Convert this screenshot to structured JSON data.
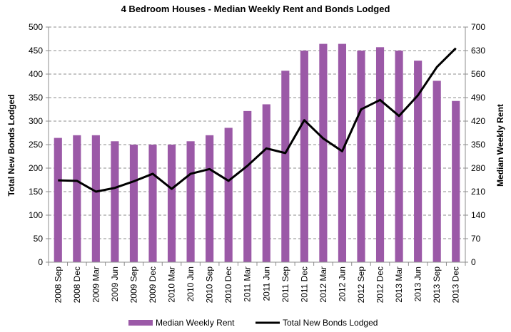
{
  "chart_data": {
    "type": "bar",
    "title": "4 Bedroom Houses - Median Weekly Rent and Bonds Lodged",
    "categories": [
      "2008 Sep",
      "2008 Dec",
      "2009 Mar",
      "2009 Jun",
      "2009 Sep",
      "2009 Dec",
      "2010 Mar",
      "2010 Jun",
      "2010 Sep",
      "2010 Dec",
      "2011 Mar",
      "2011 Jun",
      "2011 Sep",
      "2011 Dec",
      "2012 Mar",
      "2012 Jun",
      "2012 Sep",
      "2012 Dec",
      "2013 Mar",
      "2013 Jun",
      "2013 Sep",
      "2013 Dec"
    ],
    "ylabel_left": "Total New Bonds Lodged",
    "ylabel_right": "Median Weekly Rent",
    "ylim_left": [
      0,
      500
    ],
    "yticks_left": [
      0,
      50,
      100,
      150,
      200,
      250,
      300,
      350,
      400,
      450,
      500
    ],
    "ylim_right": [
      0,
      700
    ],
    "yticks_right": [
      0,
      70,
      140,
      210,
      280,
      350,
      420,
      490,
      560,
      630,
      700
    ],
    "grid": true,
    "legend_position": "bottom",
    "series": [
      {
        "name": "Median Weekly Rent",
        "type": "bar",
        "axis": "right",
        "color": "#9b59a7",
        "values": [
          370,
          378,
          378,
          360,
          350,
          350,
          350,
          360,
          378,
          400,
          450,
          470,
          570,
          630,
          650,
          650,
          630,
          640,
          630,
          600,
          540,
          480
        ]
      },
      {
        "name": "Total New Bonds Lodged",
        "type": "line",
        "axis": "left",
        "color": "#000000",
        "values": [
          174,
          173,
          150,
          158,
          172,
          188,
          156,
          188,
          198,
          173,
          205,
          242,
          232,
          302,
          263,
          236,
          325,
          345,
          311,
          355,
          415,
          455
        ]
      }
    ]
  }
}
